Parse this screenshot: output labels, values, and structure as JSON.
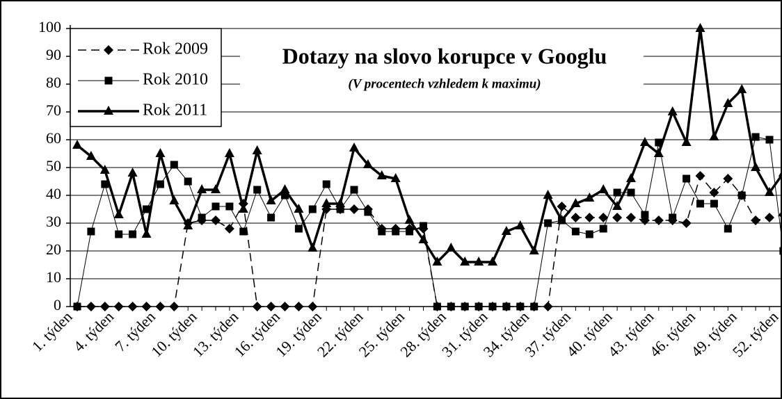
{
  "chart_data": {
    "type": "line",
    "title": "Dotazy na slovo korupce v Googlu",
    "subtitle": "(V procentech vzhledem k maximu)",
    "categories": [
      "1. týden",
      null,
      null,
      "4. týden",
      null,
      null,
      "7. týden",
      null,
      null,
      "10. týden",
      null,
      null,
      "13. týden",
      null,
      null,
      "16. týden",
      null,
      null,
      "19. týden",
      null,
      null,
      "22. týden",
      null,
      null,
      "25. týden",
      null,
      null,
      "28. týden",
      null,
      null,
      "31. týden",
      null,
      null,
      "34. týden",
      null,
      null,
      "37. týden",
      null,
      null,
      "40. týden",
      null,
      null,
      "43. týden",
      null,
      null,
      "46. týden",
      null,
      null,
      "49. týden",
      null,
      null,
      "52. týden"
    ],
    "series": [
      {
        "name": "Rok 2009",
        "color": "#000000",
        "line_style": "dashed",
        "marker": "diamond",
        "values": [
          0,
          0,
          0,
          0,
          0,
          0,
          0,
          0,
          30,
          31,
          31,
          28,
          37,
          0,
          0,
          0,
          0,
          0,
          35,
          35,
          35,
          35,
          28,
          28,
          28,
          28,
          0,
          0,
          0,
          0,
          0,
          0,
          0,
          0,
          0,
          36,
          32,
          32,
          32,
          32,
          32,
          31,
          31,
          31,
          30,
          47,
          41,
          46,
          40,
          31,
          32,
          33
        ]
      },
      {
        "name": "Rok 2010",
        "color": "#000000",
        "line_style": "thin",
        "marker": "square",
        "values": [
          0,
          27,
          44,
          26,
          26,
          35,
          44,
          51,
          45,
          32,
          36,
          36,
          27,
          42,
          32,
          40,
          28,
          35,
          44,
          35,
          42,
          34,
          27,
          27,
          27,
          29,
          0,
          0,
          0,
          0,
          0,
          0,
          0,
          0,
          30,
          31,
          27,
          26,
          28,
          41,
          41,
          33,
          59,
          32,
          46,
          37,
          37,
          28,
          40,
          61,
          60,
          20
        ]
      },
      {
        "name": "Rok 2011",
        "color": "#000000",
        "line_style": "thick",
        "marker": "triangle",
        "values": [
          58,
          54,
          49,
          33,
          48,
          26,
          55,
          38,
          29,
          42,
          42,
          55,
          35,
          56,
          38,
          42,
          35,
          21,
          37,
          37,
          57,
          51,
          47,
          46,
          31,
          24,
          16,
          21,
          16,
          16,
          16,
          27,
          29,
          20,
          40,
          31,
          37,
          39,
          42,
          36,
          46,
          59,
          55,
          70,
          59,
          100,
          61,
          73,
          78,
          50,
          41,
          48
        ]
      }
    ],
    "ylim": [
      0,
      100
    ],
    "yticks": [
      0,
      10,
      20,
      30,
      40,
      50,
      60,
      70,
      80,
      90,
      100
    ],
    "grid": true,
    "legend": "top-left"
  }
}
